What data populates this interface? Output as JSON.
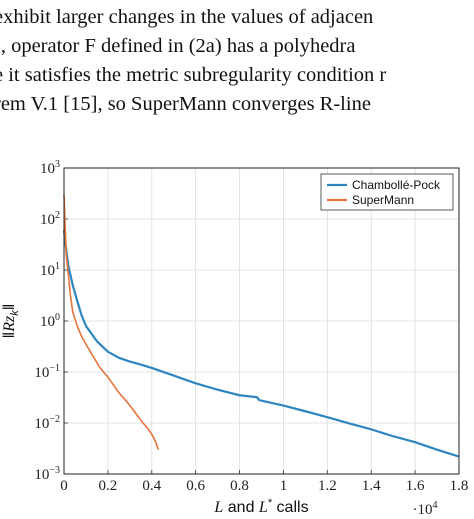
{
  "document": {
    "lines": [
      "exhibit larger changes in the values of adjacen",
      "), operator F defined in (2a) has a polyhedra",
      "e it satisfies the metric subregularity condition r",
      "rem V.1 [15], so SuperMann converges R-line"
    ]
  },
  "chart_data": {
    "type": "line",
    "xlabel": "L and L* calls",
    "ylabel": "||Rz_k||",
    "x_multiplier_label": "·10^4",
    "x_scale": "linear",
    "y_scale": "log",
    "xlim": [
      0,
      1.8
    ],
    "ylim": [
      0.001,
      1000
    ],
    "x_ticks": [
      "0",
      "0.2",
      "0.4",
      "0.6",
      "0.8",
      "1",
      "1.2",
      "1.4",
      "1.6",
      "1.8"
    ],
    "y_ticks": [
      "10^3",
      "10^2",
      "10^1",
      "10^0",
      "10^-1",
      "10^-2",
      "10^-3"
    ],
    "grid": true,
    "legend_position": "top-right",
    "series": [
      {
        "name": "Chambollé-Pock",
        "color": "#2e86c1",
        "x": [
          0,
          0.01,
          0.02,
          0.04,
          0.06,
          0.08,
          0.1,
          0.15,
          0.2,
          0.25,
          0.3,
          0.35,
          0.4,
          0.5,
          0.6,
          0.7,
          0.8,
          0.88,
          0.89,
          1.0,
          1.1,
          1.2,
          1.3,
          1.4,
          1.5,
          1.6,
          1.7,
          1.8
        ],
        "y": [
          60,
          25,
          12,
          5,
          2.5,
          1.3,
          0.8,
          0.4,
          0.25,
          0.19,
          0.16,
          0.14,
          0.12,
          0.085,
          0.06,
          0.045,
          0.035,
          0.032,
          0.028,
          0.022,
          0.017,
          0.013,
          0.0098,
          0.0075,
          0.0055,
          0.0042,
          0.003,
          0.0022
        ]
      },
      {
        "name": "SuperMann",
        "color": "#e8743b",
        "x": [
          0,
          0.005,
          0.01,
          0.02,
          0.03,
          0.04,
          0.06,
          0.08,
          0.1,
          0.12,
          0.14,
          0.16,
          0.18,
          0.2,
          0.22,
          0.24,
          0.26,
          0.28,
          0.3,
          0.32,
          0.34,
          0.36,
          0.38,
          0.4,
          0.41,
          0.42,
          0.43
        ],
        "y": [
          300,
          80,
          20,
          8,
          3,
          1.5,
          0.8,
          0.5,
          0.35,
          0.25,
          0.18,
          0.13,
          0.1,
          0.08,
          0.06,
          0.045,
          0.035,
          0.028,
          0.022,
          0.017,
          0.013,
          0.01,
          0.008,
          0.006,
          0.005,
          0.004,
          0.003
        ]
      }
    ]
  }
}
